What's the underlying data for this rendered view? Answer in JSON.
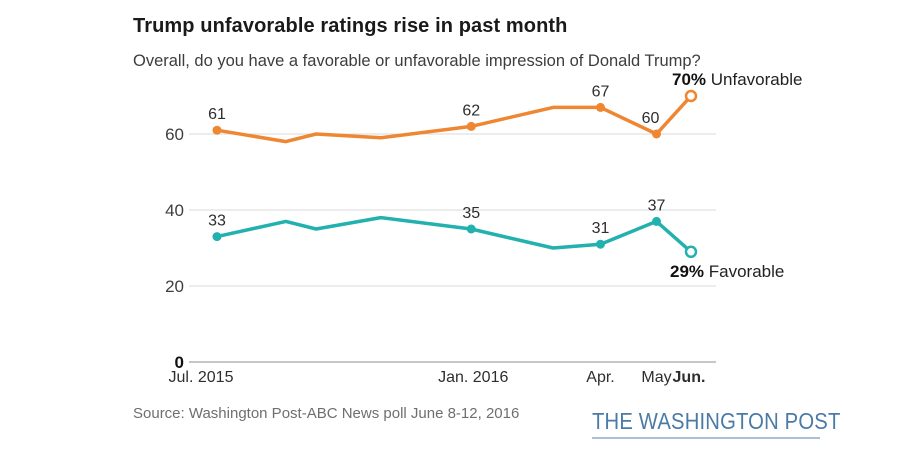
{
  "chart_data": {
    "type": "line",
    "title": "Trump unfavorable ratings rise in past month",
    "subtitle": "Overall, do you have a favorable or unfavorable impression of Donald Trump?",
    "x_axis": {
      "span_months": 11,
      "labels": [
        {
          "text": "Jul. 2015",
          "m": 0,
          "dx": -16,
          "bold": false
        },
        {
          "text": "Jan. 2016",
          "m": 5.9,
          "dx": 2,
          "bold": false
        },
        {
          "text": "Apr.",
          "m": 8.9,
          "dx": 0,
          "bold": false
        },
        {
          "text": "May",
          "m": 10.2,
          "dx": 0,
          "bold": false
        },
        {
          "text": "Jun.",
          "m": 11,
          "dx": -2,
          "bold": true
        }
      ]
    },
    "y_axis": {
      "ticks": [
        0,
        20,
        40,
        60
      ],
      "range": [
        0,
        75
      ],
      "grid": true,
      "gridline_color": "#d9d9d9",
      "zero_line_color": "#8f8f8f"
    },
    "series": [
      {
        "name": "Unfavorable",
        "color": "#ee8632",
        "points": [
          {
            "m": 0,
            "v": 61,
            "label": "61",
            "marker": "dot"
          },
          {
            "m": 1.6,
            "v": 58
          },
          {
            "m": 2.3,
            "v": 60
          },
          {
            "m": 3.8,
            "v": 59
          },
          {
            "m": 5.9,
            "v": 62,
            "label": "62",
            "marker": "dot"
          },
          {
            "m": 7.8,
            "v": 67
          },
          {
            "m": 8.9,
            "v": 67,
            "label": "67",
            "marker": "dot"
          },
          {
            "m": 10.2,
            "v": 60,
            "label": "60",
            "marker": "dot",
            "label_dx": -6
          },
          {
            "m": 11,
            "v": 70,
            "marker": "open"
          }
        ],
        "end_label": {
          "value": "70%",
          "text": "Unfavorable"
        }
      },
      {
        "name": "Favorable",
        "color": "#22b1ae",
        "points": [
          {
            "m": 0,
            "v": 33,
            "label": "33",
            "marker": "dot"
          },
          {
            "m": 1.6,
            "v": 37
          },
          {
            "m": 2.3,
            "v": 35
          },
          {
            "m": 3.8,
            "v": 38
          },
          {
            "m": 5.9,
            "v": 35,
            "label": "35",
            "marker": "dot"
          },
          {
            "m": 7.8,
            "v": 30
          },
          {
            "m": 8.9,
            "v": 31,
            "label": "31",
            "marker": "dot"
          },
          {
            "m": 10.2,
            "v": 37,
            "label": "37",
            "marker": "dot"
          },
          {
            "m": 11,
            "v": 29,
            "marker": "open"
          }
        ],
        "end_label": {
          "value": "29%",
          "text": "Favorable"
        }
      }
    ],
    "source": "Source: Washington Post-ABC News poll June 8-12, 2016"
  },
  "footer": {
    "logo": "THE WASHINGTON POST",
    "logo_color": "#4a7aa6"
  },
  "text_colors": {
    "point_label": "#2d2d2d",
    "tick_label": "#3f3f3f",
    "zero_tick": "#111111"
  }
}
